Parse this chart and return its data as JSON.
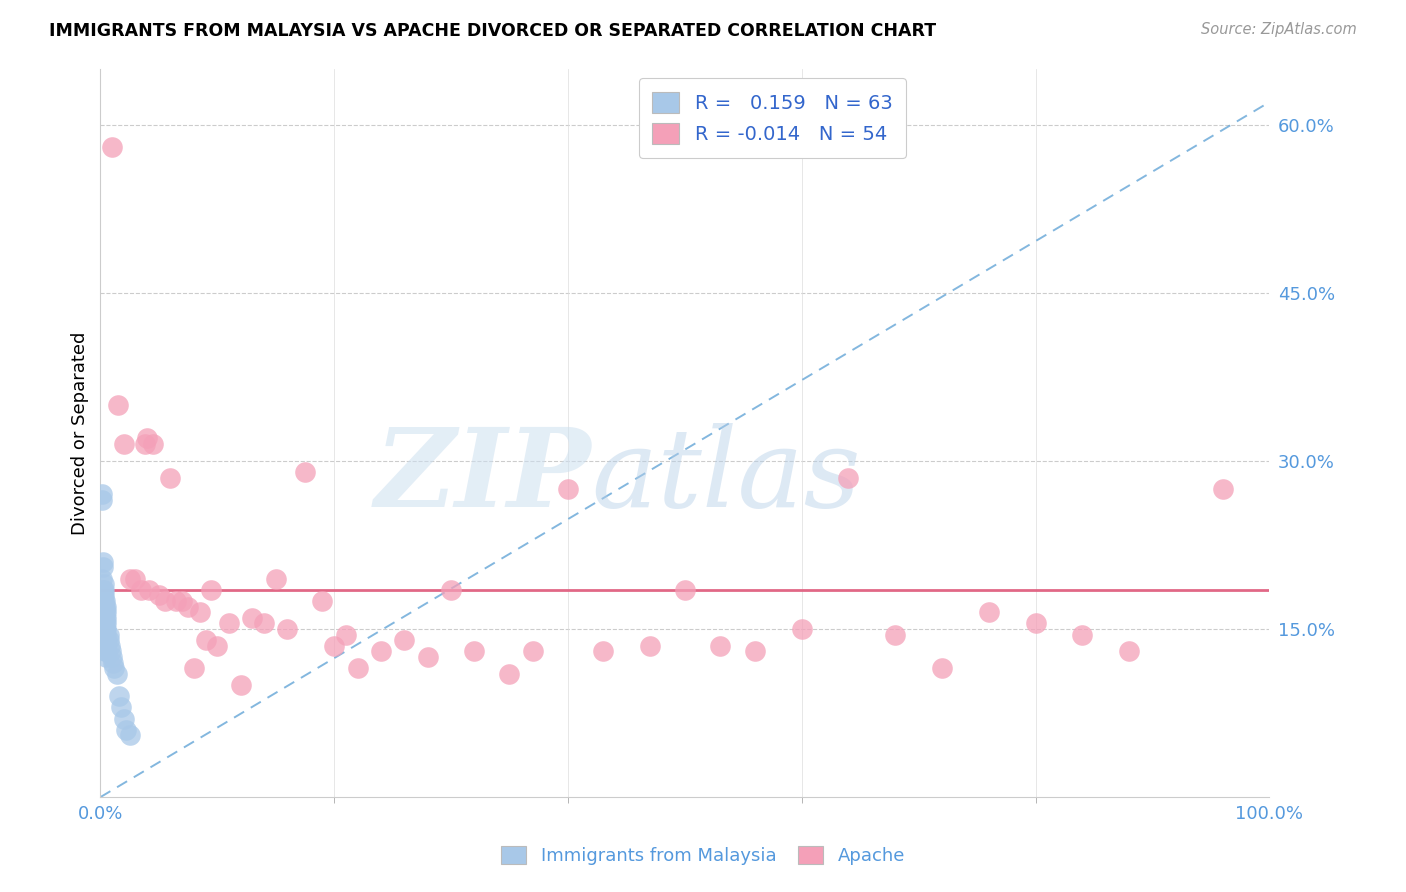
{
  "title": "IMMIGRANTS FROM MALAYSIA VS APACHE DIVORCED OR SEPARATED CORRELATION CHART",
  "source": "Source: ZipAtlas.com",
  "xlabel_blue": "Immigrants from Malaysia",
  "xlabel_pink": "Apache",
  "ylabel": "Divorced or Separated",
  "xmin": 0.0,
  "xmax": 1.0,
  "ymin": 0.0,
  "ymax": 0.65,
  "ytick_positions": [
    0.15,
    0.3,
    0.45,
    0.6
  ],
  "ytick_labels": [
    "15.0%",
    "30.0%",
    "45.0%",
    "60.0%"
  ],
  "R_blue": 0.159,
  "N_blue": 63,
  "R_pink": -0.014,
  "N_pink": 54,
  "blue_color": "#a8c8e8",
  "pink_color": "#f4a0b8",
  "blue_line_color": "#5a9fd4",
  "pink_line_color": "#e06080",
  "blue_trend_x": [
    0.0,
    1.0
  ],
  "blue_trend_y": [
    0.0,
    0.62
  ],
  "pink_trend_y": 0.185,
  "blue_scatter_x": [
    0.001,
    0.001,
    0.001,
    0.001,
    0.001,
    0.001,
    0.001,
    0.001,
    0.001,
    0.001,
    0.002,
    0.002,
    0.002,
    0.002,
    0.002,
    0.002,
    0.002,
    0.002,
    0.002,
    0.002,
    0.003,
    0.003,
    0.003,
    0.003,
    0.003,
    0.003,
    0.003,
    0.003,
    0.003,
    0.003,
    0.004,
    0.004,
    0.004,
    0.004,
    0.004,
    0.004,
    0.004,
    0.004,
    0.004,
    0.004,
    0.005,
    0.005,
    0.005,
    0.005,
    0.005,
    0.005,
    0.005,
    0.005,
    0.005,
    0.005,
    0.007,
    0.007,
    0.008,
    0.009,
    0.01,
    0.011,
    0.012,
    0.014,
    0.016,
    0.018,
    0.02,
    0.022,
    0.025
  ],
  "blue_scatter_y": [
    0.265,
    0.27,
    0.195,
    0.175,
    0.16,
    0.155,
    0.15,
    0.145,
    0.14,
    0.135,
    0.21,
    0.205,
    0.185,
    0.18,
    0.175,
    0.17,
    0.165,
    0.16,
    0.155,
    0.15,
    0.19,
    0.185,
    0.18,
    0.175,
    0.17,
    0.165,
    0.16,
    0.155,
    0.15,
    0.145,
    0.175,
    0.17,
    0.165,
    0.16,
    0.155,
    0.15,
    0.145,
    0.14,
    0.135,
    0.13,
    0.17,
    0.165,
    0.16,
    0.155,
    0.15,
    0.145,
    0.14,
    0.135,
    0.13,
    0.125,
    0.145,
    0.14,
    0.135,
    0.13,
    0.125,
    0.12,
    0.115,
    0.11,
    0.09,
    0.08,
    0.07,
    0.06,
    0.055
  ],
  "pink_scatter_x": [
    0.01,
    0.015,
    0.02,
    0.025,
    0.03,
    0.035,
    0.038,
    0.04,
    0.042,
    0.045,
    0.05,
    0.055,
    0.06,
    0.065,
    0.07,
    0.075,
    0.08,
    0.085,
    0.09,
    0.095,
    0.1,
    0.11,
    0.12,
    0.13,
    0.14,
    0.15,
    0.16,
    0.175,
    0.19,
    0.2,
    0.21,
    0.22,
    0.24,
    0.26,
    0.28,
    0.3,
    0.32,
    0.35,
    0.37,
    0.4,
    0.43,
    0.47,
    0.5,
    0.53,
    0.56,
    0.6,
    0.64,
    0.68,
    0.72,
    0.76,
    0.8,
    0.84,
    0.88,
    0.96
  ],
  "pink_scatter_y": [
    0.58,
    0.35,
    0.315,
    0.195,
    0.195,
    0.185,
    0.315,
    0.32,
    0.185,
    0.315,
    0.18,
    0.175,
    0.285,
    0.175,
    0.175,
    0.17,
    0.115,
    0.165,
    0.14,
    0.185,
    0.135,
    0.155,
    0.1,
    0.16,
    0.155,
    0.195,
    0.15,
    0.29,
    0.175,
    0.135,
    0.145,
    0.115,
    0.13,
    0.14,
    0.125,
    0.185,
    0.13,
    0.11,
    0.13,
    0.275,
    0.13,
    0.135,
    0.185,
    0.135,
    0.13,
    0.15,
    0.285,
    0.145,
    0.115,
    0.165,
    0.155,
    0.145,
    0.13,
    0.275
  ]
}
